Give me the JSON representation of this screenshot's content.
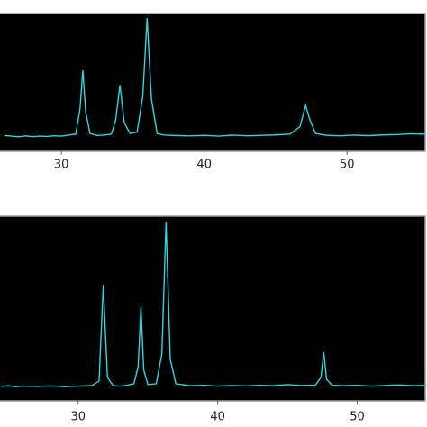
{
  "chart_data": [
    {
      "type": "line",
      "color": "#29d9e0",
      "xlim": [
        25.7,
        55.6
      ],
      "ylim": [
        0,
        100
      ],
      "xticks": [
        30,
        40,
        50
      ],
      "x": [
        26,
        26.5,
        27,
        27.5,
        28,
        28.5,
        29,
        29.5,
        30,
        30.5,
        31,
        31.3,
        31.5,
        31.7,
        32,
        32.5,
        33,
        33.5,
        33.8,
        34.1,
        34.4,
        34.8,
        35.3,
        35.7,
        36,
        36.3,
        36.7,
        37.2,
        38,
        39,
        40,
        41,
        42,
        43,
        44,
        45,
        46,
        46.7,
        47.1,
        47.4,
        47.8,
        48.5,
        49.5,
        50.5,
        51.5,
        52.5,
        53.5,
        54.5,
        55.5
      ],
      "values": [
        10.5,
        10,
        9.5,
        10.2,
        9.6,
        10,
        9.8,
        10.3,
        10,
        10.8,
        11.5,
        30,
        59,
        28,
        12,
        10.5,
        10.8,
        11.5,
        22,
        48,
        20,
        12,
        13,
        40,
        98,
        38,
        12,
        10.8,
        10.5,
        10.2,
        10.6,
        10,
        10.8,
        10.3,
        10.6,
        10.9,
        11.5,
        17,
        33,
        22,
        12,
        10.7,
        10.3,
        10.8,
        10.4,
        10.9,
        11.2,
        11.8,
        11.5
      ]
    },
    {
      "type": "line",
      "color": "#29d9e0",
      "xlim": [
        24.4,
        55.0
      ],
      "ylim": [
        0,
        100
      ],
      "xticks": [
        30,
        40,
        50
      ],
      "x": [
        24.5,
        25,
        25.5,
        26,
        27,
        28,
        29,
        30,
        31,
        31.5,
        31.8,
        32.1,
        32.5,
        33,
        33.5,
        34,
        34.3,
        34.5,
        34.7,
        35,
        35.6,
        36,
        36.3,
        36.6,
        37,
        38,
        39,
        40,
        41,
        42,
        43,
        44,
        45,
        46,
        47,
        47.4,
        47.6,
        47.8,
        48.2,
        49,
        50,
        51,
        52,
        53,
        54,
        55
      ],
      "values": [
        7,
        7.4,
        6.8,
        7.2,
        7,
        7.3,
        6.9,
        7.2,
        7.5,
        10,
        63,
        12,
        7.5,
        7.2,
        7.6,
        8.5,
        18,
        51,
        16,
        8,
        8.5,
        25,
        98,
        22,
        8.5,
        7.4,
        7.6,
        7.2,
        7.5,
        7.3,
        7.6,
        7.4,
        8,
        7.5,
        7.7,
        12,
        26,
        11,
        7.6,
        7.4,
        7.6,
        7.2,
        7.5,
        7.8,
        7.4,
        7.6
      ]
    }
  ]
}
